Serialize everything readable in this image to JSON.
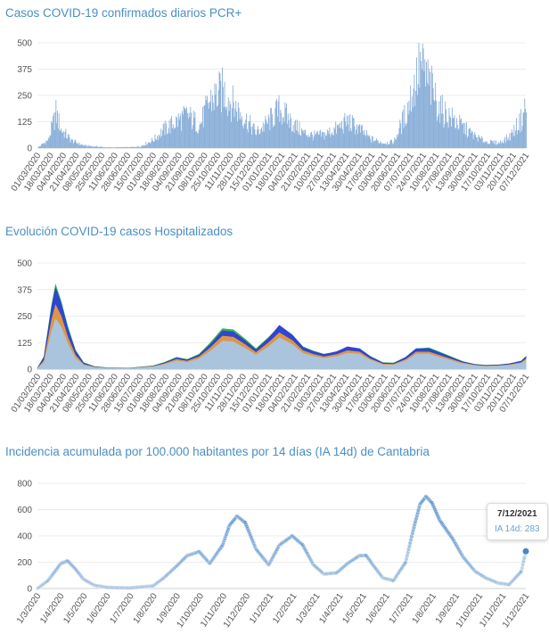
{
  "charts": [
    {
      "title": "Casos COVID-19 confirmados diarios PCR+",
      "yticks": [
        "500",
        "375",
        "250",
        "125",
        "0"
      ],
      "xticks": [
        "01/03/2020",
        "18/03/2020",
        "04/04/2020",
        "21/04/2020",
        "08/05/2020",
        "25/05/2020",
        "11/06/2020",
        "28/06/2020",
        "15/07/2020",
        "01/08/2020",
        "18/08/2020",
        "04/09/2020",
        "21/09/2020",
        "08/10/2020",
        "25/10/2020",
        "11/11/2020",
        "28/11/2020",
        "15/12/2020",
        "01/01/2021",
        "18/01/2021",
        "04/02/2021",
        "21/02/2021",
        "10/03/2021",
        "27/03/2021",
        "13/04/2021",
        "30/04/2021",
        "17/05/2021",
        "03/06/2021",
        "20/06/2021",
        "07/07/2021",
        "24/07/2021",
        "10/08/2021",
        "27/08/2021",
        "13/09/2021",
        "30/09/2021",
        "17/10/2021",
        "03/11/2021",
        "20/11/2021",
        "07/12/2021"
      ]
    },
    {
      "title": "Evolución COVID-19 casos  Hospitalizados",
      "yticks": [
        "500",
        "375",
        "250",
        "125",
        "0"
      ],
      "xticks": [
        "01/03/2020",
        "18/03/2020",
        "04/04/2020",
        "21/04/2020",
        "08/05/2020",
        "25/05/2020",
        "11/06/2020",
        "28/06/2020",
        "15/07/2020",
        "01/08/2020",
        "18/08/2020",
        "04/09/2020",
        "21/09/2020",
        "08/10/2020",
        "25/10/2020",
        "11/11/2020",
        "28/11/2020",
        "15/12/2020",
        "01/01/2021",
        "18/01/2021",
        "04/02/2021",
        "21/02/2021",
        "10/03/2021",
        "27/03/2021",
        "13/04/2021",
        "30/04/2021",
        "17/05/2021",
        "03/06/2021",
        "20/06/2021",
        "07/07/2021",
        "24/07/2021",
        "10/08/2021",
        "27/08/2021",
        "13/09/2021",
        "30/09/2021",
        "17/10/2021",
        "03/11/2021",
        "20/11/2021",
        "07/12/2021"
      ]
    },
    {
      "title": "Incidencia acumulada por 100.000 habitantes por 14 días (IA 14d) de Cantabria",
      "yticks": [
        "800",
        "600",
        "400",
        "200",
        "0"
      ],
      "xticks": [
        "1/3/2020",
        "1/4/2020",
        "1/5/2020",
        "1/6/2020",
        "1/7/2020",
        "1/8/2020",
        "1/9/2020",
        "1/10/2020",
        "1/11/2020",
        "1/12/2020",
        "1/1/2021",
        "1/2/2021",
        "1/3/2021",
        "1/4/2021",
        "1/5/2021",
        "1/6/2021",
        "1/7/2021",
        "1/8/2021",
        "1/9/2021",
        "1/10/2021",
        "1/11/2021",
        "1/12/2021"
      ],
      "tooltip": {
        "date": "7/12/2021",
        "label": "IA 14d: 283"
      }
    }
  ],
  "chart_data": [
    {
      "type": "bar",
      "title": "Casos COVID-19 confirmados diarios PCR+",
      "ylim": [
        0,
        500
      ],
      "x_range": [
        "01/03/2020",
        "07/12/2021"
      ],
      "color": "#8aafd8",
      "x": [
        "01/03/2020",
        "15/03/2020",
        "25/03/2020",
        "01/04/2020",
        "15/04/2020",
        "01/05/2020",
        "01/06/2020",
        "01/07/2020",
        "15/07/2020",
        "01/08/2020",
        "15/08/2020",
        "01/09/2020",
        "15/09/2020",
        "01/10/2020",
        "15/10/2020",
        "01/11/2020",
        "15/11/2020",
        "01/12/2020",
        "15/12/2020",
        "01/01/2021",
        "15/01/2021",
        "01/02/2021",
        "15/02/2021",
        "01/03/2021",
        "15/03/2021",
        "01/04/2021",
        "15/04/2021",
        "01/05/2021",
        "15/05/2021",
        "01/06/2021",
        "15/06/2021",
        "01/07/2021",
        "10/07/2021",
        "20/07/2021",
        "01/08/2021",
        "15/08/2021",
        "01/09/2021",
        "15/09/2021",
        "01/10/2021",
        "15/10/2021",
        "01/11/2021",
        "15/11/2021",
        "01/12/2021",
        "07/12/2021"
      ],
      "values": [
        2,
        40,
        170,
        90,
        35,
        12,
        3,
        4,
        8,
        40,
        90,
        130,
        160,
        110,
        230,
        280,
        210,
        140,
        75,
        130,
        190,
        120,
        75,
        60,
        65,
        95,
        130,
        90,
        45,
        25,
        30,
        170,
        280,
        400,
        310,
        190,
        140,
        100,
        55,
        30,
        25,
        55,
        140,
        210
      ]
    },
    {
      "type": "area",
      "title": "Evolución COVID-19 casos  Hospitalizados",
      "ylim": [
        0,
        500
      ],
      "x_range": [
        "01/03/2020",
        "07/12/2021"
      ],
      "x": [
        "01/03/2020",
        "10/03/2020",
        "20/03/2020",
        "25/03/2020",
        "01/04/2020",
        "10/04/2020",
        "20/04/2020",
        "01/05/2020",
        "15/05/2020",
        "01/06/2020",
        "01/07/2020",
        "01/08/2020",
        "15/08/2020",
        "01/09/2020",
        "15/09/2020",
        "01/10/2020",
        "15/10/2020",
        "01/11/2020",
        "15/11/2020",
        "01/12/2020",
        "15/12/2020",
        "01/01/2021",
        "15/01/2021",
        "01/02/2021",
        "15/02/2021",
        "01/03/2021",
        "15/03/2021",
        "01/04/2021",
        "15/04/2021",
        "01/05/2021",
        "15/05/2021",
        "01/06/2021",
        "15/06/2021",
        "01/07/2021",
        "15/07/2021",
        "01/08/2021",
        "15/08/2021",
        "01/09/2021",
        "15/09/2021",
        "01/10/2021",
        "15/10/2021",
        "01/11/2021",
        "15/11/2021",
        "01/12/2021",
        "07/12/2021"
      ],
      "series": [
        {
          "color": "#2db34a",
          "values": [
            3,
            60,
            300,
            395,
            320,
            200,
            90,
            30,
            12,
            6,
            4,
            15,
            30,
            55,
            45,
            70,
            120,
            190,
            185,
            140,
            95,
            150,
            200,
            160,
            105,
            85,
            70,
            80,
            100,
            95,
            60,
            30,
            28,
            55,
            95,
            100,
            80,
            55,
            35,
            22,
            18,
            20,
            25,
            38,
            58
          ]
        },
        {
          "color": "#2f3fd8",
          "values": [
            3,
            55,
            290,
            380,
            310,
            190,
            85,
            28,
            11,
            5,
            4,
            14,
            28,
            52,
            43,
            66,
            112,
            180,
            175,
            132,
            90,
            145,
            205,
            160,
            102,
            82,
            68,
            82,
            104,
            96,
            58,
            28,
            26,
            54,
            96,
            96,
            76,
            52,
            33,
            21,
            17,
            19,
            24,
            36,
            55
          ]
        },
        {
          "color": "#e89a3c",
          "values": [
            2,
            40,
            230,
            300,
            250,
            150,
            65,
            22,
            9,
            4,
            3,
            12,
            24,
            45,
            37,
            57,
            97,
            155,
            150,
            114,
            77,
            124,
            170,
            134,
            86,
            69,
            57,
            68,
            86,
            80,
            48,
            23,
            22,
            44,
            80,
            80,
            64,
            44,
            28,
            18,
            14,
            16,
            20,
            30,
            46
          ]
        },
        {
          "color": "#a9c4dc",
          "values": [
            2,
            30,
            180,
            235,
            200,
            120,
            52,
            18,
            7,
            3,
            2,
            10,
            20,
            38,
            31,
            48,
            82,
            132,
            128,
            97,
            66,
            106,
            147,
            116,
            74,
            60,
            50,
            59,
            75,
            70,
            42,
            20,
            19,
            38,
            70,
            70,
            55,
            38,
            24,
            15,
            12,
            14,
            17,
            26,
            40
          ]
        }
      ]
    },
    {
      "type": "scatter",
      "title": "Incidencia acumulada por 100.000 habitantes por 14 días (IA 14d) de Cantabria",
      "ylim": [
        0,
        800
      ],
      "x_range": [
        "01/03/2020",
        "07/12/2021"
      ],
      "color": "#4a86c5",
      "x": [
        "01/03/2020",
        "15/03/2020",
        "01/04/2020",
        "10/04/2020",
        "20/04/2020",
        "01/05/2020",
        "15/05/2020",
        "01/06/2020",
        "01/07/2020",
        "01/08/2020",
        "15/08/2020",
        "01/09/2020",
        "15/09/2020",
        "01/10/2020",
        "15/10/2020",
        "01/11/2020",
        "10/11/2020",
        "20/11/2020",
        "01/12/2020",
        "15/12/2020",
        "01/01/2021",
        "15/01/2021",
        "01/02/2021",
        "15/02/2021",
        "01/03/2021",
        "15/03/2021",
        "01/04/2021",
        "15/04/2021",
        "01/05/2021",
        "10/05/2021",
        "20/05/2021",
        "01/06/2021",
        "15/06/2021",
        "01/07/2021",
        "10/07/2021",
        "20/07/2021",
        "28/07/2021",
        "05/08/2021",
        "15/08/2021",
        "01/09/2021",
        "15/09/2021",
        "01/10/2021",
        "15/10/2021",
        "01/11/2021",
        "15/11/2021",
        "01/12/2021",
        "07/12/2021"
      ],
      "values": [
        0,
        60,
        190,
        210,
        150,
        70,
        25,
        8,
        4,
        20,
        80,
        170,
        250,
        280,
        190,
        330,
        480,
        550,
        500,
        300,
        180,
        330,
        400,
        330,
        180,
        110,
        120,
        190,
        250,
        250,
        170,
        80,
        60,
        200,
        420,
        640,
        700,
        650,
        520,
        380,
        240,
        130,
        80,
        40,
        30,
        130,
        283
      ]
    }
  ]
}
